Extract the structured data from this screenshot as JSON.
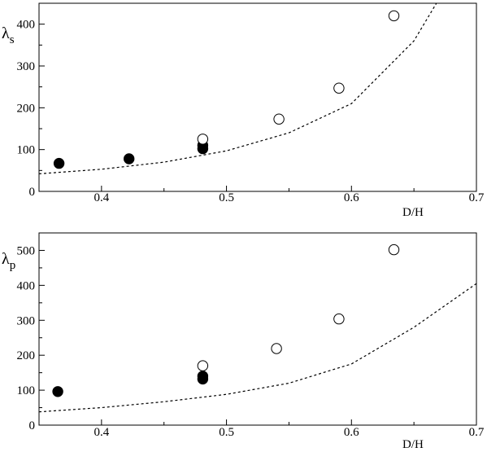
{
  "chart_data": [
    {
      "type": "scatter",
      "title": "",
      "ylabel": {
        "symbol": "λ",
        "subscript": "s"
      },
      "xlabel": "D/H",
      "xlim": [
        0.35,
        0.7
      ],
      "ylim": [
        0,
        450
      ],
      "xticks": [
        0.4,
        0.5,
        0.6,
        0.7
      ],
      "xtick_labels": [
        "0.4",
        "0.5",
        "0.6",
        "0.7"
      ],
      "yticks": [
        0,
        100,
        200,
        300,
        400
      ],
      "ytick_labels": [
        "0",
        "100",
        "200",
        "300",
        "400"
      ],
      "grid": false,
      "series": [
        {
          "marker": "filled-circle",
          "points": [
            [
              0.366,
              67
            ],
            [
              0.422,
              78
            ],
            [
              0.481,
              110
            ],
            [
              0.481,
              102
            ]
          ]
        },
        {
          "marker": "open-circle",
          "points": [
            [
              0.481,
              125
            ],
            [
              0.542,
              173
            ],
            [
              0.59,
              247
            ],
            [
              0.634,
              420
            ]
          ]
        },
        {
          "line": "dashed",
          "points": [
            [
              0.35,
              42
            ],
            [
              0.4,
              53
            ],
            [
              0.45,
              70
            ],
            [
              0.5,
              97
            ],
            [
              0.55,
              140
            ],
            [
              0.6,
              210
            ],
            [
              0.65,
              360
            ],
            [
              0.668,
              450
            ]
          ]
        }
      ]
    },
    {
      "type": "scatter",
      "title": "",
      "ylabel": {
        "symbol": "λ",
        "subscript": "p"
      },
      "xlabel": "D/H",
      "xlim": [
        0.35,
        0.7
      ],
      "ylim": [
        0,
        550
      ],
      "xticks": [
        0.4,
        0.5,
        0.6,
        0.7
      ],
      "xtick_labels": [
        "0.4",
        "0.5",
        "0.6",
        "0.7"
      ],
      "yticks": [
        0,
        100,
        200,
        300,
        400,
        500
      ],
      "ytick_labels": [
        "0",
        "100",
        "200",
        "300",
        "400",
        "500"
      ],
      "grid": false,
      "series": [
        {
          "marker": "filled-circle",
          "points": [
            [
              0.365,
              96
            ],
            [
              0.481,
              140
            ],
            [
              0.481,
              132
            ]
          ]
        },
        {
          "marker": "open-circle",
          "points": [
            [
              0.481,
              170
            ],
            [
              0.54,
              219
            ],
            [
              0.59,
              304
            ],
            [
              0.634,
              502
            ]
          ]
        },
        {
          "line": "dashed",
          "points": [
            [
              0.35,
              38
            ],
            [
              0.4,
              50
            ],
            [
              0.45,
              67
            ],
            [
              0.5,
              88
            ],
            [
              0.55,
              120
            ],
            [
              0.6,
              175
            ],
            [
              0.65,
              280
            ],
            [
              0.7,
              405
            ]
          ]
        }
      ]
    }
  ]
}
